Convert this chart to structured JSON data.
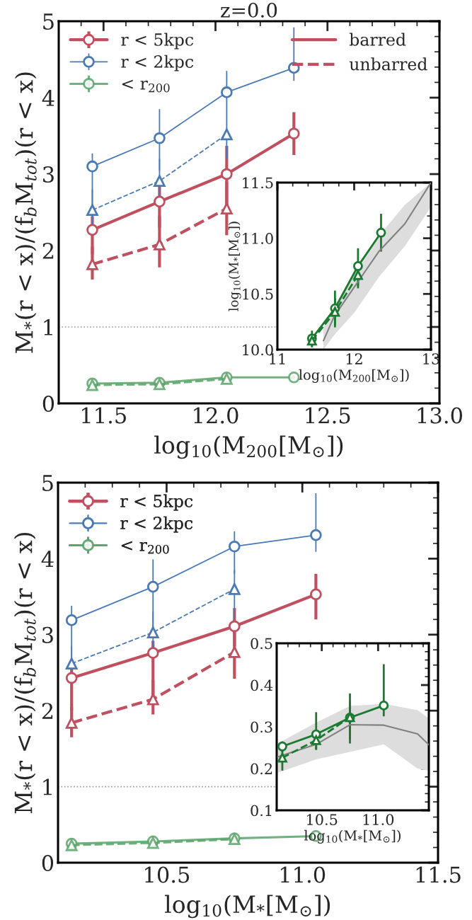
{
  "chart_data": [
    {
      "type": "line",
      "title": "z=0.0",
      "xlabel": "log$_{10}$(M$_{200}$[M$_{⊙}$])",
      "ylabel": "M$_{*}$(r < x)/(f$_{b}$M$_{tot}$)(r < x)",
      "x": [
        11.45,
        11.75,
        12.05,
        12.35
      ],
      "xlim": [
        11.3,
        13.0
      ],
      "ylim": [
        0,
        5
      ],
      "xticks": [
        11.5,
        {
          "value": 12.0,
          "label": "12.0"
        },
        12.5,
        {
          "value": 13.0,
          "label": "13.0"
        }
      ],
      "yticks": [
        0,
        1,
        2,
        3,
        4,
        5
      ],
      "legend": "top left",
      "annotations": [
        "barred",
        "unbarred"
      ],
      "ref_lines": [
        {
          "axis": "y",
          "value": 1,
          "color": "#999999",
          "line_style": "dotted"
        }
      ],
      "series": [
        {
          "name": "r < 5kpc",
          "color": "#c0505f",
          "marker": "circle",
          "line_style": "solid",
          "values": [
            2.27,
            2.64,
            3.0,
            3.53
          ],
          "errors": [
            [
              1.95,
              2.45
            ],
            [
              2.3,
              2.95
            ],
            [
              2.6,
              3.37
            ],
            [
              3.25,
              3.81
            ]
          ]
        },
        {
          "color": "#c0505f",
          "marker": "triangle",
          "line_style": "dashed",
          "values": [
            1.82,
            2.08,
            2.55,
            null
          ],
          "errors": [
            [
              1.62,
              2.05
            ],
            [
              1.78,
              2.45
            ],
            [
              2.2,
              2.9
            ],
            null
          ]
        },
        {
          "name": "r < 2kpc",
          "color": "#4a7ab5",
          "marker": "circle",
          "line_style": "solid",
          "values": [
            3.1,
            3.47,
            4.07,
            4.39
          ],
          "errors": [
            [
              2.55,
              3.27
            ],
            [
              3.05,
              3.85
            ],
            [
              3.75,
              4.35
            ],
            [
              4.22,
              4.92
            ]
          ]
        },
        {
          "color": "#4a7ab5",
          "marker": "triangle",
          "line_style": "dashed",
          "values": [
            2.53,
            2.91,
            3.52,
            null
          ],
          "errors": [
            [
              2.3,
              2.8
            ],
            [
              2.6,
              3.2
            ],
            [
              3.2,
              3.75
            ],
            null
          ]
        },
        {
          "name": "< r$_{200}$",
          "color": "#5aa36a",
          "marker": "circle",
          "line_style": "solid",
          "values": [
            0.26,
            0.27,
            0.34,
            0.34
          ],
          "errors": [
            [
              0.24,
              0.28
            ],
            [
              0.25,
              0.29
            ],
            [
              0.31,
              0.37
            ],
            [
              0.31,
              0.37
            ]
          ]
        },
        {
          "color": "#5aa36a",
          "marker": "triangle",
          "line_style": "dashed",
          "values": [
            0.24,
            0.25,
            0.32,
            null
          ],
          "errors": [
            [
              0.22,
              0.26
            ],
            [
              0.23,
              0.27
            ],
            [
              0.3,
              0.34
            ],
            null
          ]
        }
      ]
    },
    {
      "type": "line",
      "xlabel": "log$_{10}$(M$_{200}$[M$_{⊙}$])",
      "ylabel": "log$_{10}$(M$_{*}$[M$_{⊙}$])",
      "xlim": [
        11,
        13
      ],
      "ylim": [
        10.0,
        11.5
      ],
      "xticks": [
        11,
        12,
        13
      ],
      "yticks": [
        {
          "value": 10.0,
          "label": "10.0"
        },
        10.5,
        {
          "value": 11.0,
          "label": "11.0"
        },
        11.5
      ],
      "series": [
        {
          "x": [
            11.6,
            11.74,
            12.0,
            12.32,
            12.66,
            13.0
          ],
          "color": "#808080",
          "marker": "none",
          "line_style": "solid",
          "values": [
            10.08,
            10.3,
            10.56,
            10.88,
            11.13,
            11.5
          ],
          "lower": [
            10.0,
            10.13,
            10.33,
            10.65,
            10.93,
            11.28
          ],
          "upper": [
            10.2,
            10.38,
            10.7,
            11.02,
            11.3,
            11.5
          ]
        },
        {
          "x": [
            11.45,
            11.75,
            12.05,
            12.35
          ],
          "color": "#1a7a30",
          "marker": "circle",
          "line_style": "solid",
          "values": [
            10.1,
            10.37,
            10.75,
            11.05
          ],
          "errors": [
            [
              10.03,
              10.17
            ],
            [
              10.2,
              10.53
            ],
            [
              10.57,
              10.91
            ],
            [
              10.88,
              11.22
            ]
          ]
        },
        {
          "x": [
            11.45,
            11.75,
            12.05
          ],
          "color": "#1a7a30",
          "marker": "triangle",
          "line_style": "dashed",
          "values": [
            10.08,
            10.34,
            10.67
          ],
          "errors": [
            [
              10.02,
              10.13
            ],
            [
              10.22,
              10.46
            ],
            [
              10.55,
              10.79
            ]
          ]
        }
      ]
    },
    {
      "type": "line",
      "xlabel": "log$_{10}$(M$_{*}$[M$_{⊙}$])",
      "ylabel": "M$_{*}$(r < x)/(f$_{b}$M$_{tot}$)(r < x)",
      "x": [
        10.15,
        10.45,
        10.75,
        11.05
      ],
      "xlim": [
        10.1,
        11.5
      ],
      "ylim": [
        0,
        5
      ],
      "xticks": [
        10.5,
        {
          "value": 11.0,
          "label": "11.0"
        },
        11.5
      ],
      "yticks": [
        0,
        1,
        2,
        3,
        4,
        5
      ],
      "legend": "top left",
      "ref_lines": [
        {
          "axis": "y",
          "value": 1,
          "color": "#999999",
          "line_style": "dotted"
        }
      ],
      "series": [
        {
          "name": "r < 5kpc",
          "color": "#c0505f",
          "marker": "circle",
          "line_style": "solid",
          "values": [
            2.43,
            2.76,
            3.11,
            3.53
          ],
          "errors": [
            [
              2.0,
              2.6
            ],
            [
              2.1,
              2.92
            ],
            [
              2.85,
              3.35
            ],
            [
              3.2,
              3.8
            ]
          ]
        },
        {
          "color": "#c0505f",
          "marker": "triangle",
          "line_style": "dashed",
          "values": [
            1.84,
            2.15,
            2.77,
            null
          ],
          "errors": [
            [
              1.65,
              2.05
            ],
            [
              1.95,
              2.4
            ],
            [
              2.42,
              3.1
            ],
            null
          ]
        },
        {
          "name": "r < 2kpc",
          "color": "#4a7ab5",
          "marker": "circle",
          "line_style": "solid",
          "values": [
            3.19,
            3.63,
            4.16,
            4.31
          ],
          "errors": [
            [
              2.6,
              3.38
            ],
            [
              3.0,
              3.99
            ],
            [
              3.8,
              4.36
            ],
            [
              4.09,
              4.86
            ]
          ]
        },
        {
          "color": "#4a7ab5",
          "marker": "triangle",
          "line_style": "dashed",
          "values": [
            2.62,
            3.03,
            3.6,
            null
          ],
          "errors": [
            [
              2.4,
              2.85
            ],
            [
              2.7,
              3.3
            ],
            [
              3.2,
              3.85
            ],
            null
          ]
        },
        {
          "name": "< r$_{200}$",
          "color": "#5aa36a",
          "marker": "circle",
          "line_style": "solid",
          "values": [
            0.25,
            0.28,
            0.32,
            0.35
          ],
          "errors": [
            [
              0.23,
              0.27
            ],
            [
              0.26,
              0.3
            ],
            [
              0.3,
              0.34
            ],
            [
              0.33,
              0.39
            ]
          ]
        },
        {
          "color": "#5aa36a",
          "marker": "triangle",
          "line_style": "dashed",
          "values": [
            0.23,
            0.26,
            0.31,
            null
          ],
          "errors": [
            [
              0.21,
              0.25
            ],
            [
              0.24,
              0.28
            ],
            [
              0.29,
              0.33
            ],
            null
          ]
        }
      ]
    },
    {
      "type": "line",
      "xlabel": "log$_{10}$(M$_{*}$[M$_{⊙}$])",
      "xlim": [
        10.1,
        11.45
      ],
      "ylim": [
        0.1,
        0.5
      ],
      "xticks": [
        10.5,
        {
          "value": 11.0,
          "label": "11.0"
        }
      ],
      "yticks": [
        0.1,
        0.2,
        0.3,
        0.4,
        0.5
      ],
      "series": [
        {
          "x": [
            10.11,
            10.45,
            10.75,
            11.05,
            11.35,
            11.45
          ],
          "color": "#808080",
          "marker": "none",
          "line_style": "solid",
          "values": [
            0.228,
            0.258,
            0.305,
            0.304,
            0.283,
            0.257
          ],
          "lower": [
            0.19,
            0.222,
            0.24,
            0.258,
            0.2,
            0.195
          ],
          "upper": [
            0.26,
            0.31,
            0.35,
            0.355,
            0.34,
            0.32
          ]
        },
        {
          "x": [
            10.15,
            10.45,
            10.75,
            11.05
          ],
          "color": "#1a7a30",
          "marker": "circle",
          "line_style": "solid",
          "values": [
            0.253,
            0.282,
            0.322,
            0.351
          ],
          "errors": [
            [
              0.24,
              0.265
            ],
            [
              0.245,
              0.335
            ],
            [
              0.26,
              0.38
            ],
            [
              0.325,
              0.45
            ]
          ]
        },
        {
          "x": [
            10.15,
            10.45,
            10.75
          ],
          "color": "#1a7a30",
          "marker": "triangle",
          "line_style": "dashed",
          "values": [
            0.226,
            0.268,
            0.323
          ],
          "errors": [
            [
              0.195,
              0.25
            ],
            [
              0.245,
              0.29
            ],
            [
              0.27,
              0.36
            ]
          ]
        }
      ]
    }
  ]
}
